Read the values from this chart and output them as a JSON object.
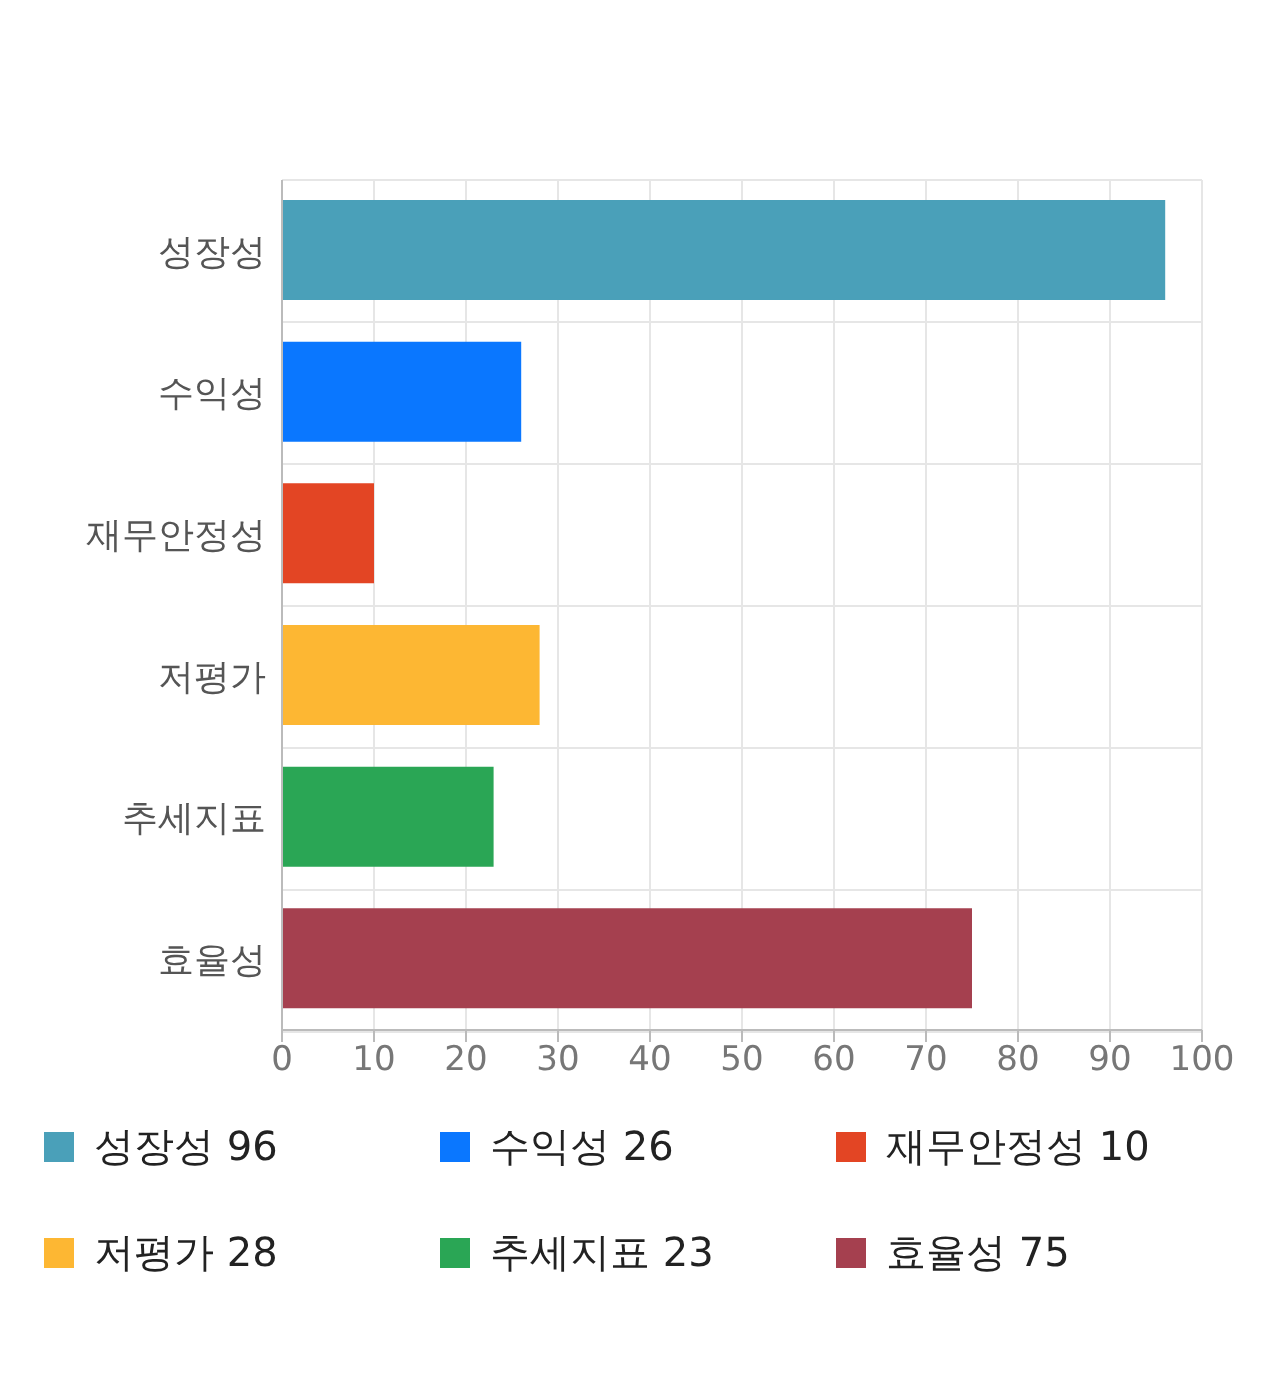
{
  "chart_data": {
    "type": "bar",
    "orientation": "horizontal",
    "stacked": true,
    "categories": [
      "성장성",
      "수익성",
      "재무안정성",
      "저평가",
      "추세지표",
      "효율성"
    ],
    "series": [
      {
        "name": "성장성 96",
        "color": "#4aa0b9",
        "values": [
          96,
          null,
          null,
          null,
          null,
          null
        ]
      },
      {
        "name": "수익성 26",
        "color": "#0a77ff",
        "values": [
          null,
          26,
          null,
          null,
          null,
          null
        ]
      },
      {
        "name": "재무안정성 10",
        "color": "#e34524",
        "values": [
          null,
          null,
          10,
          null,
          null,
          null
        ]
      },
      {
        "name": "저평가 28",
        "color": "#fdb733",
        "values": [
          null,
          null,
          null,
          28,
          null,
          null
        ]
      },
      {
        "name": "추세지표 23",
        "color": "#2aa655",
        "values": [
          null,
          null,
          null,
          null,
          23,
          null
        ]
      },
      {
        "name": "효율성 75",
        "color": "#a5404f",
        "values": [
          null,
          null,
          null,
          null,
          null,
          75
        ]
      }
    ],
    "xlim": [
      0,
      100
    ],
    "xticks": [
      0,
      10,
      20,
      30,
      40,
      50,
      60,
      70,
      80,
      90,
      100
    ],
    "grid": true,
    "legend": "bottom"
  }
}
